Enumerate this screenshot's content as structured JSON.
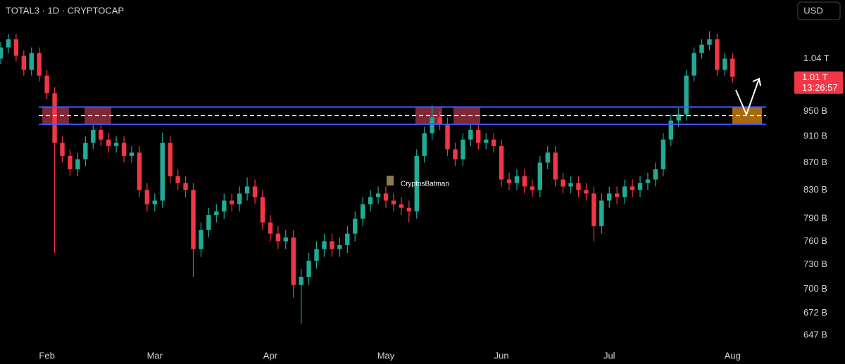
{
  "chart_data": {
    "type": "candlestick",
    "title": "TOTAL3 · 1D · CRYPTOCAP",
    "currency": "USD",
    "watermark": "CryptosBatman",
    "log_scale": true,
    "up_color": "#22ab94",
    "down_color": "#f23645",
    "categories": [
      null,
      null,
      null,
      null,
      null,
      null,
      "Feb",
      null,
      null,
      null,
      null,
      null,
      null,
      null,
      null,
      null,
      null,
      null,
      null,
      null,
      "Mar",
      null,
      null,
      null,
      null,
      null,
      null,
      null,
      null,
      null,
      null,
      null,
      null,
      null,
      null,
      "Apr",
      null,
      null,
      null,
      null,
      null,
      null,
      null,
      null,
      null,
      null,
      null,
      null,
      null,
      null,
      "May",
      null,
      null,
      null,
      null,
      null,
      null,
      null,
      null,
      null,
      null,
      null,
      null,
      null,
      null,
      "Jun",
      null,
      null,
      null,
      null,
      null,
      null,
      null,
      null,
      null,
      null,
      null,
      null,
      null,
      "Jul",
      null,
      null,
      null,
      null,
      null,
      null,
      null,
      null,
      null,
      null,
      null,
      null,
      null,
      null,
      null,
      "Aug"
    ],
    "open": [
      1040,
      1060,
      1075,
      1045,
      1020,
      1050,
      1010,
      980,
      900,
      880,
      860,
      875,
      900,
      920,
      905,
      895,
      900,
      880,
      885,
      830,
      810,
      815,
      900,
      850,
      840,
      830,
      750,
      775,
      795,
      800,
      815,
      810,
      825,
      835,
      820,
      785,
      770,
      760,
      765,
      705,
      715,
      735,
      750,
      760,
      750,
      755,
      770,
      790,
      810,
      820,
      825,
      815,
      810,
      805,
      800,
      880,
      915,
      940,
      930,
      890,
      875,
      905,
      920,
      900,
      905,
      895,
      845,
      840,
      850,
      835,
      830,
      870,
      885,
      845,
      835,
      840,
      830,
      825,
      780,
      815,
      825,
      820,
      835,
      830,
      840,
      845,
      860,
      905,
      935,
      945,
      1010,
      1050,
      1065,
      1075,
      1020,
      1040
    ],
    "high": [
      1070,
      1085,
      1085,
      1055,
      1060,
      1060,
      1020,
      990,
      910,
      890,
      885,
      910,
      930,
      930,
      915,
      910,
      910,
      895,
      895,
      840,
      825,
      916,
      910,
      860,
      850,
      840,
      785,
      805,
      810,
      825,
      825,
      835,
      848,
      845,
      830,
      795,
      780,
      775,
      775,
      725,
      745,
      760,
      770,
      770,
      765,
      780,
      800,
      820,
      830,
      835,
      835,
      825,
      820,
      815,
      890,
      925,
      960,
      950,
      940,
      900,
      915,
      930,
      930,
      915,
      915,
      905,
      855,
      860,
      860,
      845,
      880,
      895,
      895,
      855,
      850,
      850,
      840,
      835,
      825,
      835,
      835,
      845,
      845,
      850,
      855,
      870,
      915,
      945,
      955,
      1020,
      1060,
      1075,
      1090,
      1085,
      1050,
      1050
    ],
    "low": [
      1030,
      1050,
      1035,
      1010,
      1010,
      1000,
      970,
      745,
      870,
      850,
      850,
      865,
      890,
      895,
      885,
      885,
      870,
      870,
      820,
      800,
      800,
      805,
      840,
      830,
      820,
      715,
      740,
      765,
      785,
      790,
      800,
      800,
      815,
      810,
      775,
      760,
      750,
      750,
      690,
      660,
      705,
      725,
      740,
      740,
      740,
      745,
      760,
      780,
      800,
      810,
      805,
      800,
      795,
      785,
      790,
      870,
      905,
      920,
      880,
      865,
      865,
      895,
      890,
      890,
      885,
      835,
      830,
      830,
      825,
      820,
      820,
      860,
      835,
      825,
      825,
      820,
      815,
      760,
      770,
      805,
      810,
      810,
      820,
      820,
      830,
      835,
      850,
      895,
      925,
      935,
      1000,
      1040,
      1055,
      1010,
      1010,
      998
    ],
    "close": [
      1060,
      1075,
      1045,
      1020,
      1050,
      1010,
      980,
      900,
      880,
      860,
      875,
      900,
      920,
      905,
      895,
      900,
      880,
      885,
      830,
      810,
      815,
      900,
      850,
      840,
      830,
      750,
      775,
      795,
      800,
      815,
      810,
      825,
      835,
      820,
      785,
      770,
      760,
      765,
      705,
      715,
      735,
      750,
      760,
      750,
      755,
      770,
      790,
      810,
      820,
      825,
      815,
      810,
      805,
      800,
      880,
      915,
      940,
      930,
      890,
      875,
      905,
      920,
      900,
      905,
      895,
      845,
      840,
      850,
      835,
      830,
      870,
      885,
      845,
      835,
      840,
      830,
      825,
      780,
      815,
      825,
      820,
      835,
      830,
      840,
      845,
      860,
      905,
      935,
      945,
      1010,
      1050,
      1065,
      1075,
      1020,
      1040,
      1008
    ],
    "ylim": [
      633,
      1150
    ],
    "yticks": [
      {
        "value": 1040,
        "label": "1.04 T"
      },
      {
        "value": 950,
        "label": "950 B"
      },
      {
        "value": 910,
        "label": "910 B"
      },
      {
        "value": 870,
        "label": "870 B"
      },
      {
        "value": 830,
        "label": "830 B"
      },
      {
        "value": 790,
        "label": "790 B"
      },
      {
        "value": 760,
        "label": "760 B"
      },
      {
        "value": 730,
        "label": "730 B"
      },
      {
        "value": 700,
        "label": "700 B"
      },
      {
        "value": 672,
        "label": "672 B"
      },
      {
        "value": 647,
        "label": "647 B"
      }
    ],
    "last_price": {
      "value": 1010,
      "label": "1.01 T"
    },
    "countdown": "13:26:57",
    "zone": {
      "top": 957,
      "mid": 943,
      "bottom": 929
    }
  }
}
